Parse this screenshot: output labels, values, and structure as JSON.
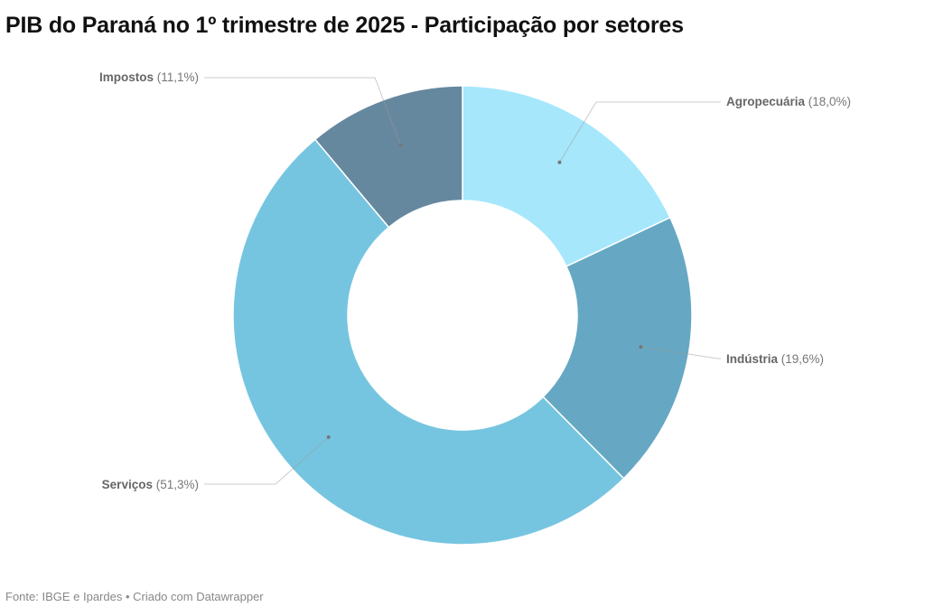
{
  "chart_data": {
    "type": "pie",
    "variant": "donut",
    "title": "PIB do Paraná no 1º trimestre de 2025 - Participação por setores",
    "slices": [
      {
        "label": "Agropecuária",
        "value": 18.0,
        "value_label": "(18,0%)",
        "color": "#a6e7fc"
      },
      {
        "label": "Indústria",
        "value": 19.6,
        "value_label": "(19,6%)",
        "color": "#66a8c3"
      },
      {
        "label": "Serviços",
        "value": 51.3,
        "value_label": "(51,3%)",
        "color": "#76c5e0"
      },
      {
        "label": "Impostos",
        "value": 11.1,
        "value_label": "(11,1%)",
        "color": "#66889f"
      }
    ]
  },
  "footer": "Fonte: IBGE e Ipardes • Criado com Datawrapper"
}
